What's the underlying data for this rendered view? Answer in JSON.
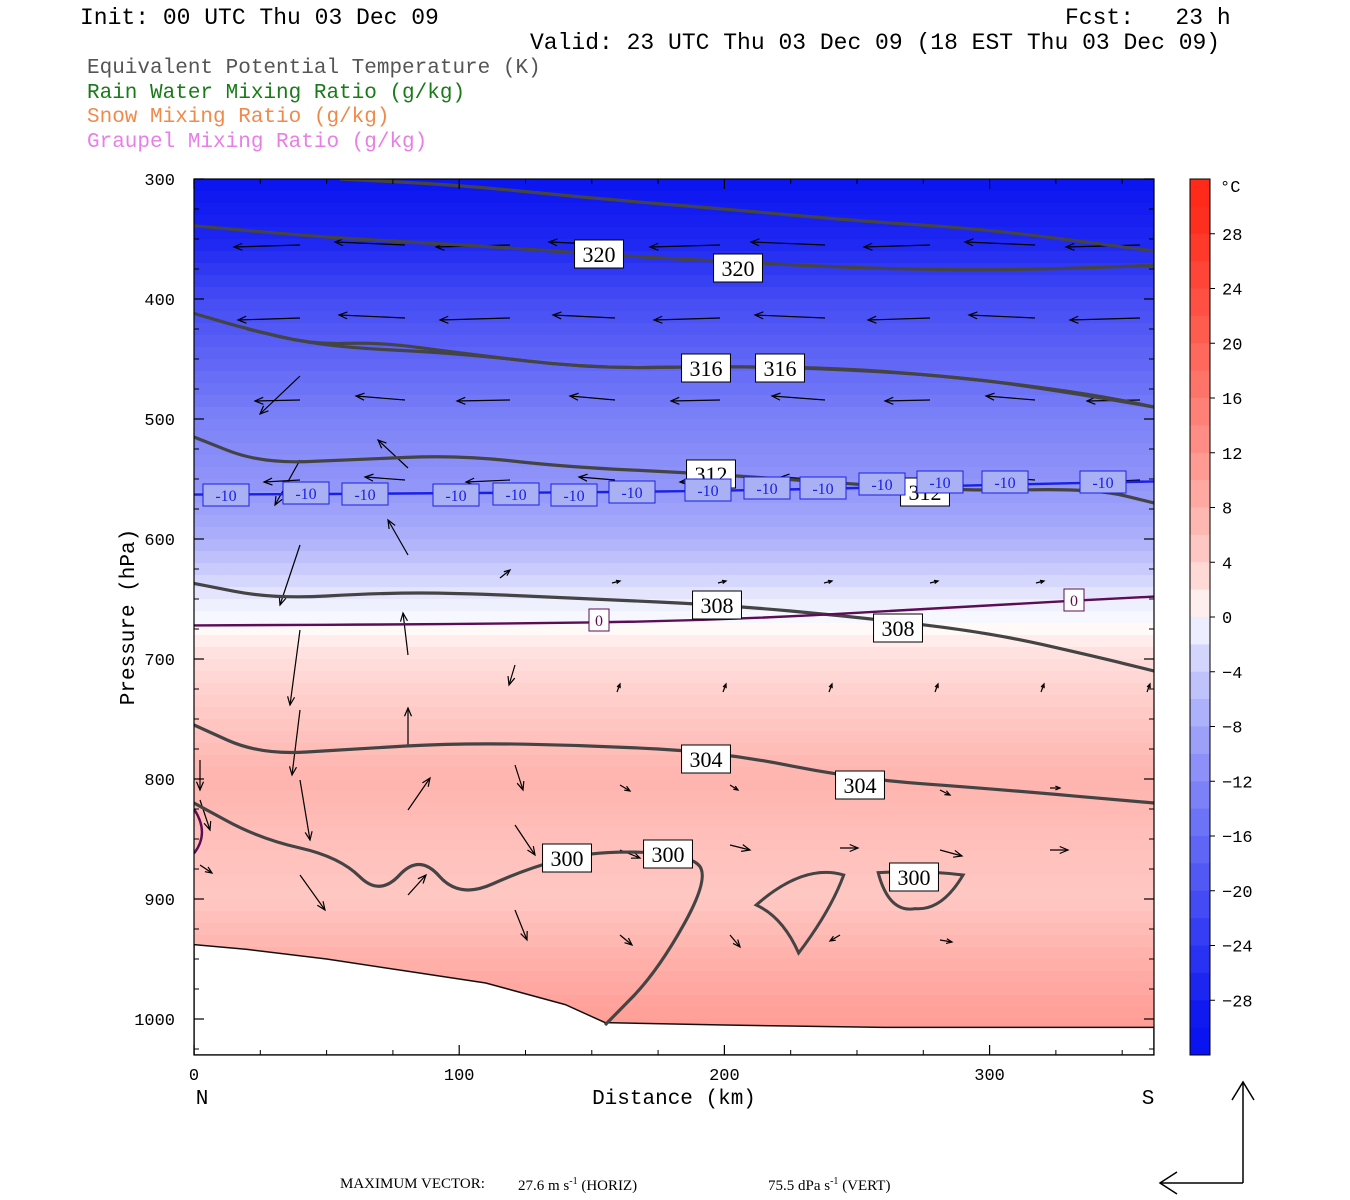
{
  "header": {
    "init": "Init: 00 UTC Thu 03 Dec 09",
    "fcst": "Fcst:   23 h",
    "valid": "Valid: 23 UTC Thu 03 Dec 09 (18 EST Thu 03 Dec 09)"
  },
  "fields": [
    {
      "label": "Equivalent Potential Temperature (K)",
      "color": "#555555"
    },
    {
      "label": "Rain Water Mixing Ratio (g/kg)",
      "color": "#1a7a1a"
    },
    {
      "label": "Snow Mixing Ratio (g/kg)",
      "color": "#f08a4b"
    },
    {
      "label": "Graupel Mixing Ratio (g/kg)",
      "color": "#e87ee8"
    }
  ],
  "chart_data": {
    "type": "cross-section",
    "xlabel": "Distance (km)",
    "ylabel": "Pressure (hPa)",
    "xlim": [
      0,
      362
    ],
    "ylim": [
      300,
      1030
    ],
    "y_scale": "linear (inverted)",
    "x_ticks": [
      0,
      100,
      200,
      300
    ],
    "y_ticks": [
      300,
      400,
      500,
      600,
      700,
      800,
      900,
      1000
    ],
    "endpoints": {
      "left": "N",
      "right": "S"
    },
    "colorbar": {
      "unit": "°C",
      "ticks": [
        28,
        24,
        20,
        16,
        12,
        8,
        4,
        0,
        -4,
        -8,
        -12,
        -16,
        -20,
        -24,
        -28
      ],
      "warm_max_color": "#ff2a1a",
      "cold_max_color": "#0a14f0"
    },
    "theta_e_contours": [
      {
        "level": 320,
        "label": "320",
        "points": [
          [
            55,
            300
          ],
          [
            100,
            305
          ],
          [
            150,
            316
          ],
          [
            200,
            325
          ],
          [
            250,
            335
          ],
          [
            300,
            342
          ],
          [
            362,
            360
          ]
        ]
      },
      {
        "level": 320,
        "label": "320",
        "points": [
          [
            0,
            339
          ],
          [
            30,
            345
          ],
          [
            60,
            350
          ],
          [
            110,
            356
          ],
          [
            160,
            364
          ],
          [
            210,
            370
          ],
          [
            260,
            375
          ],
          [
            310,
            376
          ],
          [
            362,
            372
          ]
        ]
      },
      {
        "level": 316,
        "label": "316",
        "points": [
          [
            0,
            412
          ],
          [
            20,
            425
          ],
          [
            45,
            438
          ],
          [
            70,
            436
          ],
          [
            100,
            445
          ],
          [
            150,
            458
          ],
          [
            200,
            456
          ],
          [
            240,
            458
          ],
          [
            290,
            465
          ],
          [
            330,
            478
          ],
          [
            362,
            490
          ]
        ]
      },
      {
        "level": 316,
        "label": "316",
        "points": [
          [
            20,
            425
          ],
          [
            50,
            440
          ],
          [
            100,
            445
          ],
          [
            150,
            458
          ],
          [
            200,
            456
          ],
          [
            250,
            458
          ],
          [
            300,
            468
          ],
          [
            340,
            480
          ],
          [
            362,
            490
          ]
        ]
      },
      {
        "level": 312,
        "label": "312",
        "points": [
          [
            0,
            515
          ],
          [
            25,
            537
          ],
          [
            60,
            534
          ],
          [
            100,
            530
          ],
          [
            140,
            540
          ],
          [
            190,
            545
          ],
          [
            240,
            553
          ],
          [
            290,
            560
          ],
          [
            340,
            558
          ],
          [
            362,
            570
          ]
        ]
      },
      {
        "level": 308,
        "label": "308",
        "points": [
          [
            0,
            637
          ],
          [
            30,
            650
          ],
          [
            70,
            645
          ],
          [
            100,
            645
          ],
          [
            150,
            650
          ],
          [
            200,
            655
          ],
          [
            250,
            665
          ],
          [
            300,
            678
          ],
          [
            340,
            698
          ],
          [
            362,
            710
          ]
        ]
      },
      {
        "level": 304,
        "label": "304",
        "points": [
          [
            0,
            755
          ],
          [
            25,
            780
          ],
          [
            60,
            775
          ],
          [
            100,
            770
          ],
          [
            150,
            772
          ],
          [
            200,
            778
          ],
          [
            250,
            800
          ],
          [
            300,
            808
          ],
          [
            362,
            820
          ]
        ]
      },
      {
        "level": 300,
        "label": "300",
        "points": [
          [
            0,
            820
          ],
          [
            25,
            850
          ],
          [
            55,
            865
          ],
          [
            70,
            898
          ],
          [
            85,
            862
          ],
          [
            100,
            900
          ],
          [
            125,
            875
          ],
          [
            150,
            860
          ],
          [
            185,
            862
          ],
          [
            195,
            880
          ],
          [
            175,
            960
          ],
          [
            155,
            1005
          ]
        ]
      }
    ],
    "isotherms": [
      {
        "level": -10,
        "label": "-10",
        "points": [
          [
            0,
            563
          ],
          [
            100,
            562
          ],
          [
            200,
            560
          ],
          [
            300,
            555
          ],
          [
            362,
            552
          ]
        ]
      },
      {
        "level": 0,
        "label": "0",
        "points": [
          [
            0,
            672
          ],
          [
            100,
            671
          ],
          [
            200,
            668
          ],
          [
            300,
            655
          ],
          [
            362,
            648
          ]
        ]
      }
    ],
    "inline_labels_320": [
      "320",
      "320"
    ],
    "inline_labels_316": [
      "316",
      "316"
    ],
    "inline_labels_312": [
      "312",
      "312"
    ],
    "inline_labels_308": [
      "308",
      "308"
    ],
    "inline_labels_304": [
      "304",
      "304"
    ],
    "inline_labels_300": [
      "300",
      "300",
      "300"
    ],
    "inline_labels_m10": [
      "-10",
      "-10",
      "-10",
      "-10",
      "-10",
      "-10",
      "-10",
      "-10",
      "-10",
      "-10",
      "-10",
      "-10",
      "-10",
      "-10"
    ],
    "inline_labels_0": [
      "0",
      "0"
    ]
  },
  "footer": {
    "label": "MAXIMUM VECTOR:",
    "horiz": "27.6 m s",
    "horiz_suffix": " (HORIZ)",
    "vert": "75.5 dPa s",
    "vert_suffix": " (VERT)",
    "exponent": "-1"
  }
}
